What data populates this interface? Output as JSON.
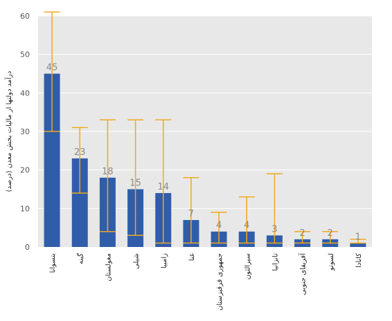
{
  "chart_data": {
    "type": "bar",
    "ylabel": "درآمد دولتها از مالیات بخش معدن (درصد)",
    "ylim": [
      0,
      60
    ],
    "yticks": [
      0,
      10,
      20,
      30,
      40,
      50,
      60
    ],
    "grid": true,
    "categories": [
      "بتسوانا",
      "گینه",
      "مغولستان",
      "شیلی",
      "زامبیا",
      "غنا",
      "جمهوری قرقیزستان",
      "سیرالئون",
      "تانزانیا",
      "آفریقای جنوبی",
      "لسوتو",
      "کانادا"
    ],
    "values": [
      45,
      23,
      18,
      15,
      14,
      7,
      4,
      4,
      3,
      2,
      2,
      1
    ],
    "error_high": [
      61,
      31,
      33,
      33,
      33,
      18,
      9,
      13,
      19,
      4,
      4,
      2
    ],
    "error_low": [
      30,
      14,
      4,
      3,
      1,
      1,
      1,
      1,
      1,
      1,
      1,
      1
    ],
    "colors": {
      "bar": "#2f5daa",
      "error": "#f2a81d",
      "plot_bg": "#e8e8e8",
      "grid": "#ffffff"
    }
  }
}
